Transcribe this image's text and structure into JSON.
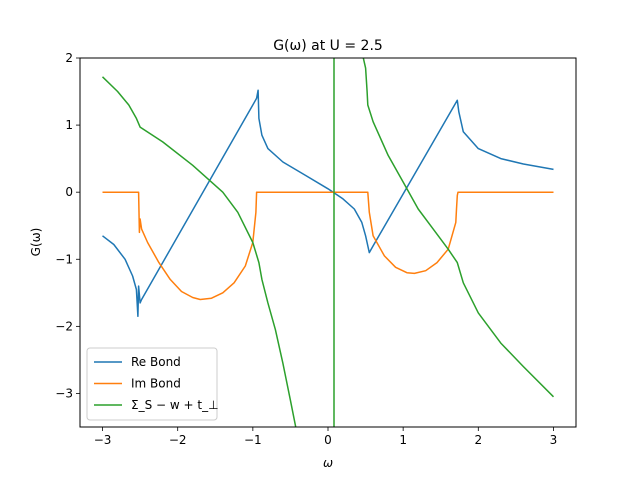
{
  "chart_data": {
    "type": "line",
    "title": "G(ω) at U = 2.5",
    "xlabel": "ω",
    "ylabel": "G(ω)",
    "xlim": [
      -3.3,
      3.3
    ],
    "ylim": [
      -3.5,
      2.0
    ],
    "xticks": [
      -3,
      -2,
      -1,
      0,
      1,
      2,
      3
    ],
    "yticks": [
      -3,
      -2,
      -1,
      0,
      1,
      2
    ],
    "xtick_labels": [
      "−3",
      "−2",
      "−1",
      "0",
      "1",
      "2",
      "3"
    ],
    "ytick_labels": [
      "−3",
      "−2",
      "−1",
      "0",
      "1",
      "2"
    ],
    "grid": false,
    "legend_position": "lower-left",
    "series": [
      {
        "name": "Re Bond",
        "color": "#1f77b4",
        "segments": [
          [
            [
              -3.0,
              -0.65
            ],
            [
              -2.85,
              -0.78
            ],
            [
              -2.7,
              -1.0
            ],
            [
              -2.6,
              -1.25
            ],
            [
              -2.55,
              -1.45
            ],
            [
              -2.53,
              -1.85
            ],
            [
              -2.52,
              -1.4
            ],
            [
              -2.5,
              -1.65
            ],
            [
              -2.48,
              -1.6
            ],
            [
              -1.0,
              1.3
            ],
            [
              -0.95,
              1.4
            ],
            [
              -0.93,
              1.52
            ],
            [
              -0.92,
              1.1
            ],
            [
              -0.88,
              0.85
            ],
            [
              -0.8,
              0.65
            ],
            [
              -0.6,
              0.45
            ],
            [
              -0.3,
              0.25
            ],
            [
              0.0,
              0.05
            ],
            [
              0.2,
              -0.1
            ],
            [
              0.35,
              -0.25
            ],
            [
              0.45,
              -0.45
            ],
            [
              0.5,
              -0.65
            ],
            [
              0.55,
              -0.9
            ],
            [
              0.6,
              -0.8
            ],
            [
              1.72,
              1.37
            ],
            [
              1.74,
              1.2
            ],
            [
              1.8,
              0.9
            ],
            [
              2.0,
              0.65
            ],
            [
              2.3,
              0.5
            ],
            [
              2.6,
              0.42
            ],
            [
              3.0,
              0.34
            ]
          ]
        ]
      },
      {
        "name": "Im Bond",
        "color": "#ff7f0e",
        "segments": [
          [
            [
              -3.0,
              0.0
            ],
            [
              -2.52,
              0.0
            ],
            [
              -2.51,
              -0.6
            ],
            [
              -2.5,
              -0.4
            ],
            [
              -2.48,
              -0.55
            ],
            [
              -2.4,
              -0.75
            ],
            [
              -2.25,
              -1.05
            ],
            [
              -2.1,
              -1.3
            ],
            [
              -1.95,
              -1.48
            ],
            [
              -1.8,
              -1.57
            ],
            [
              -1.7,
              -1.6
            ],
            [
              -1.55,
              -1.58
            ],
            [
              -1.4,
              -1.5
            ],
            [
              -1.25,
              -1.35
            ],
            [
              -1.1,
              -1.1
            ],
            [
              -1.0,
              -0.75
            ],
            [
              -0.96,
              -0.3
            ],
            [
              -0.95,
              0.0
            ],
            [
              0.53,
              0.0
            ],
            [
              0.55,
              -0.3
            ],
            [
              0.6,
              -0.65
            ],
            [
              0.75,
              -0.95
            ],
            [
              0.9,
              -1.12
            ],
            [
              1.05,
              -1.2
            ],
            [
              1.15,
              -1.21
            ],
            [
              1.3,
              -1.17
            ],
            [
              1.45,
              -1.05
            ],
            [
              1.6,
              -0.85
            ],
            [
              1.7,
              -0.45
            ],
            [
              1.71,
              -0.25
            ],
            [
              1.72,
              -0.05
            ],
            [
              1.73,
              0.0
            ],
            [
              3.0,
              0.0
            ]
          ]
        ]
      },
      {
        "name": "Σ_S − w + t_⊥",
        "color": "#2ca02c",
        "segments": [
          [
            [
              -3.0,
              1.72
            ],
            [
              -2.8,
              1.5
            ],
            [
              -2.65,
              1.3
            ],
            [
              -2.55,
              1.1
            ],
            [
              -2.5,
              0.97
            ],
            [
              -2.2,
              0.75
            ],
            [
              -1.8,
              0.4
            ],
            [
              -1.4,
              0.0
            ],
            [
              -1.2,
              -0.3
            ],
            [
              -1.0,
              -0.75
            ],
            [
              -0.92,
              -1.05
            ],
            [
              -0.88,
              -1.3
            ],
            [
              -0.8,
              -1.65
            ],
            [
              -0.7,
              -2.05
            ],
            [
              -0.6,
              -2.55
            ],
            [
              -0.5,
              -3.1
            ],
            [
              -0.42,
              -3.55
            ]
          ],
          [
            [
              0.08,
              -3.6
            ],
            [
              0.08,
              2.1
            ]
          ],
          [
            [
              0.45,
              2.1
            ],
            [
              0.5,
              1.85
            ],
            [
              0.52,
              1.5
            ],
            [
              0.53,
              1.3
            ],
            [
              0.6,
              1.05
            ],
            [
              0.8,
              0.55
            ],
            [
              1.0,
              0.15
            ],
            [
              1.2,
              -0.25
            ],
            [
              1.4,
              -0.55
            ],
            [
              1.6,
              -0.85
            ],
            [
              1.72,
              -1.05
            ],
            [
              1.8,
              -1.35
            ],
            [
              2.0,
              -1.8
            ],
            [
              2.3,
              -2.25
            ],
            [
              2.6,
              -2.6
            ],
            [
              3.0,
              -3.05
            ]
          ]
        ]
      }
    ],
    "legend": {
      "entries": [
        "Re Bond",
        "Im Bond",
        "Σ_S − w + t_⊥"
      ]
    }
  }
}
